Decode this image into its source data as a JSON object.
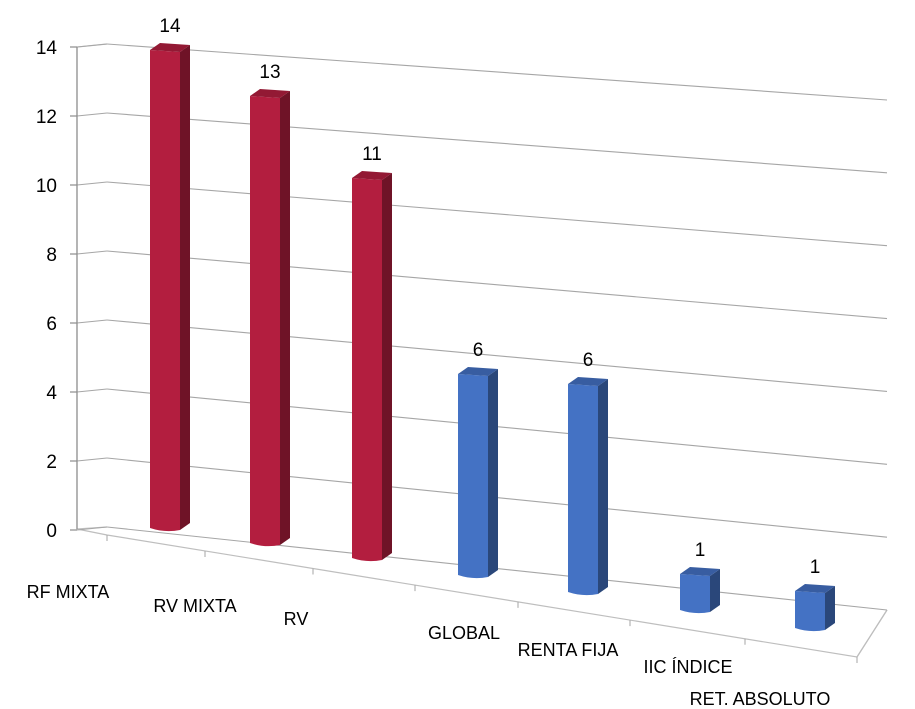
{
  "chart_data": {
    "type": "bar",
    "categories": [
      "RF MIXTA",
      "RV MIXTA",
      "RV",
      "GLOBAL",
      "RENTA FIJA",
      "IIC ÍNDICE",
      "RET. ABSOLUTO"
    ],
    "values": [
      14,
      13,
      11,
      6,
      6,
      1,
      1
    ],
    "bar_colors": [
      "#B31E3F",
      "#B31E3F",
      "#B31E3F",
      "#4472C4",
      "#4472C4",
      "#4472C4",
      "#4472C4"
    ],
    "ylim": [
      0,
      14
    ],
    "yticks": [
      0,
      2,
      4,
      6,
      8,
      10,
      12,
      14
    ],
    "grid": true,
    "projection": "3d-perspective"
  }
}
